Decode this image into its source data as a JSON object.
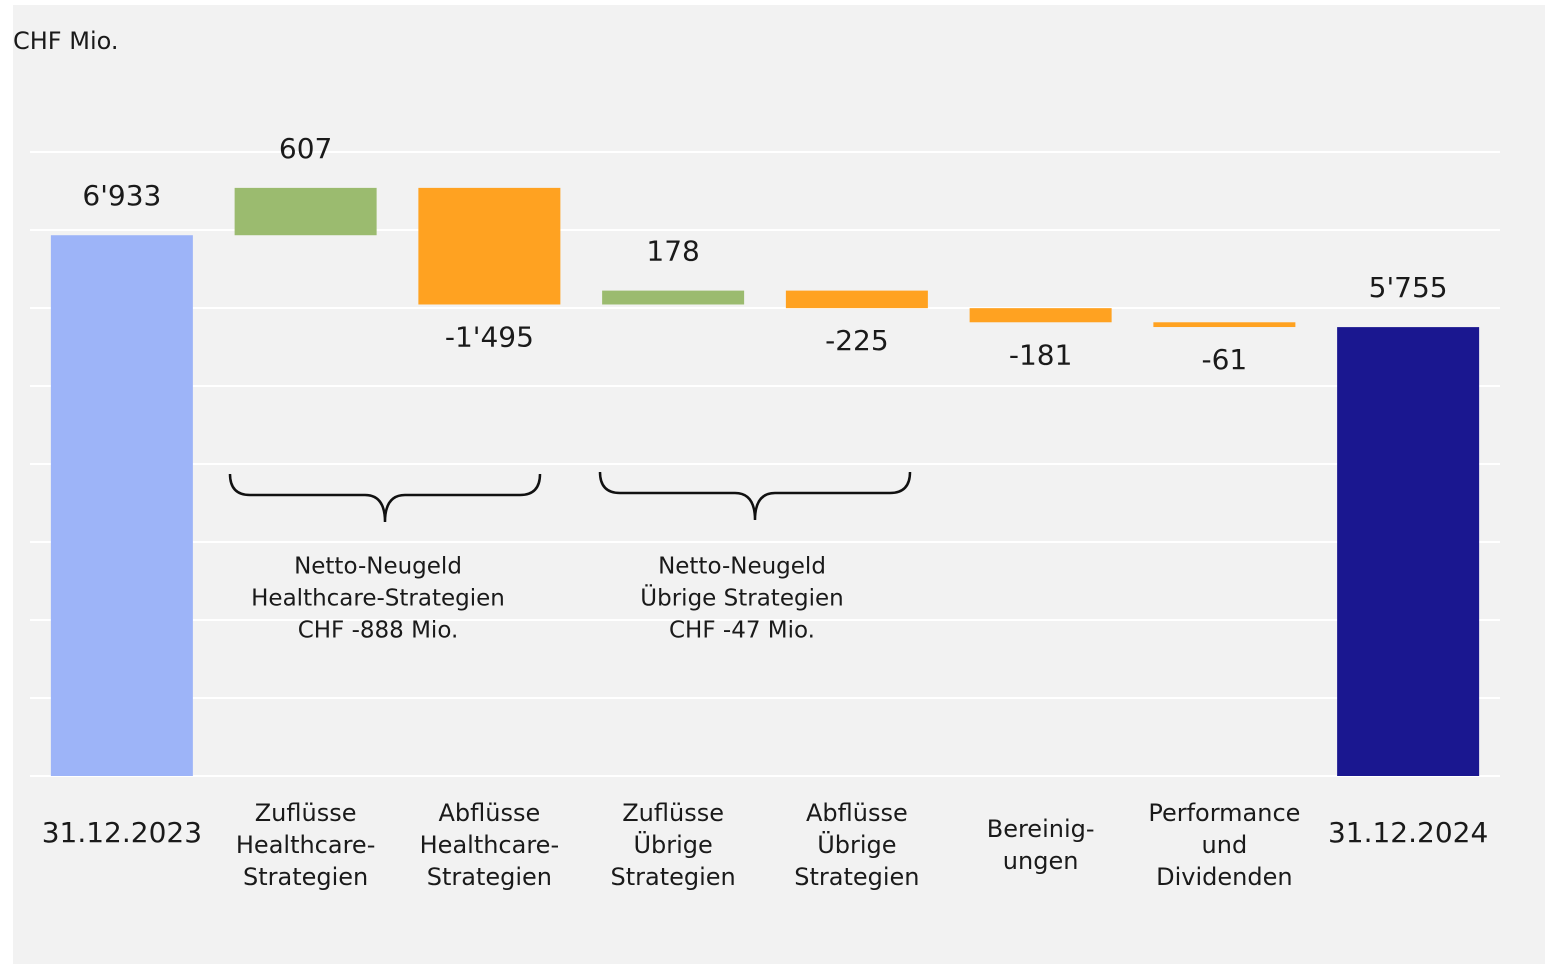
{
  "chart_data": {
    "type": "waterfall",
    "unit_label": "CHF Mio.",
    "categories": [
      [
        "31.12.2023"
      ],
      [
        "Zuflüsse",
        "Healthcare-",
        "Strategien"
      ],
      [
        "Abflüsse",
        "Healthcare-",
        "Strategien"
      ],
      [
        "Zuflüsse",
        "Übrige",
        "Strategien"
      ],
      [
        "Abflüsse",
        "Übrige",
        "Strategien"
      ],
      [
        "Bereinig-",
        "ungen"
      ],
      [
        "Performance",
        "und",
        "Dividenden"
      ],
      [
        "31.12.2024"
      ]
    ],
    "values": [
      6933,
      607,
      -1495,
      178,
      -225,
      -181,
      -61,
      5755
    ],
    "value_labels": [
      "6'933",
      "607",
      "-1'495",
      "178",
      "-225",
      "-181",
      "-61",
      "5'755"
    ],
    "measure": [
      "total",
      "relative",
      "relative",
      "relative",
      "relative",
      "relative",
      "relative",
      "total"
    ],
    "colors": [
      "#9db4f8",
      "#9bbb6f",
      "#ffa221",
      "#9bbb6f",
      "#ffa221",
      "#ffa221",
      "#ffa221",
      "#1a1790"
    ],
    "ylim": [
      0,
      8000
    ],
    "yticks": [
      0,
      1000,
      2000,
      3000,
      4000,
      5000,
      6000,
      7000,
      8000
    ],
    "grid": true,
    "annotations": [
      {
        "lines": [
          "Netto-Neugeld",
          "Healthcare-Strategien",
          "CHF -888 Mio."
        ]
      },
      {
        "lines": [
          "Netto-Neugeld",
          "Übrige Strategien",
          "CHF -47 Mio."
        ]
      }
    ]
  }
}
